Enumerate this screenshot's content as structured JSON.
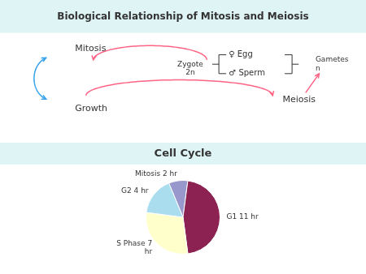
{
  "chart_data": {
    "type": "pie",
    "title": "Biological Relationship of Mitosis and Meiosis",
    "subtitle": "Cell Cycle",
    "annotations": [
      "Mitosis",
      "Growth",
      "Zygote\n2n",
      "♀ Egg",
      "♂ Sperm",
      "Meiosis",
      "Gametes\nn"
    ],
    "categories": [
      "Mitosis 2 hr",
      "G1 11 hr",
      "S Phase 7\nhr",
      "G2 4 hr"
    ],
    "values": [
      2,
      11,
      7,
      4
    ],
    "colors": [
      "#9898cc",
      "#8b2252",
      "#ffffcc",
      "#aaddee"
    ]
  }
}
